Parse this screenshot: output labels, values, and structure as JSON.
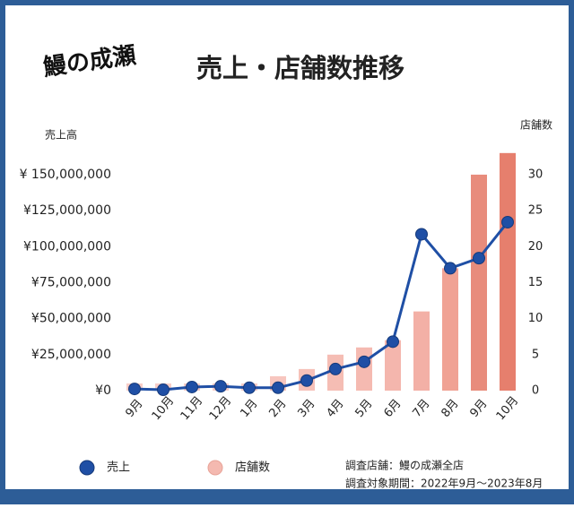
{
  "logo": "鰻の成瀬",
  "chart_data": {
    "type": "combo",
    "title": "売上・店舗数推移",
    "y_label": "売上高",
    "y2_label": "店舗数",
    "categories": [
      "9月",
      "10月",
      "11月",
      "12月",
      "1月",
      "2月",
      "3月",
      "4月",
      "5月",
      "6月",
      "7月",
      "8月",
      "9月",
      "10月"
    ],
    "series": [
      {
        "name": "店舗数",
        "type": "bar",
        "axis": "y2",
        "color": "#f4b9b0",
        "colors": [
          "#f8cdc7",
          "#f8cdc7",
          "#f8cdc7",
          "#f8cdc7",
          "#f8cdc7",
          "#f7c6bf",
          "#f6c1b9",
          "#f5bdb4",
          "#f5bab1",
          "#f4b6ad",
          "#f3b0a6",
          "#f0a294",
          "#e88c7c",
          "#e67f6d"
        ],
        "values": [
          1,
          1,
          1,
          1,
          1,
          2,
          3,
          5,
          6,
          7,
          11,
          17,
          30,
          33
        ]
      },
      {
        "name": "売上",
        "type": "line",
        "axis": "y",
        "color": "#1f4fa5",
        "values": [
          1200000,
          600000,
          2500000,
          3000000,
          2000000,
          2000000,
          7000000,
          15000000,
          20000000,
          34000000,
          108600000,
          85000000,
          92000000,
          117000000
        ]
      }
    ],
    "ylim": [
      0,
      168000000
    ],
    "yticks": [
      {
        "value": 0,
        "label": "¥0"
      },
      {
        "value": 25000000,
        "label": "¥25,000,000"
      },
      {
        "value": 50000000,
        "label": "¥50,000,000"
      },
      {
        "value": 75000000,
        "label": "¥75,000,000"
      },
      {
        "value": 100000000,
        "label": "¥100,000,000"
      },
      {
        "value": 125000000,
        "label": "¥125,000,000"
      },
      {
        "value": 150000000,
        "label": "¥ 150,000,000"
      }
    ],
    "y2lim": [
      0,
      33.6
    ],
    "y2ticks": [
      0,
      5,
      10,
      15,
      20,
      25,
      30
    ],
    "notes": [
      "調査店舗：鰻の成瀬全店",
      "調査対象期間：2022年9月〜2023年8月"
    ]
  }
}
